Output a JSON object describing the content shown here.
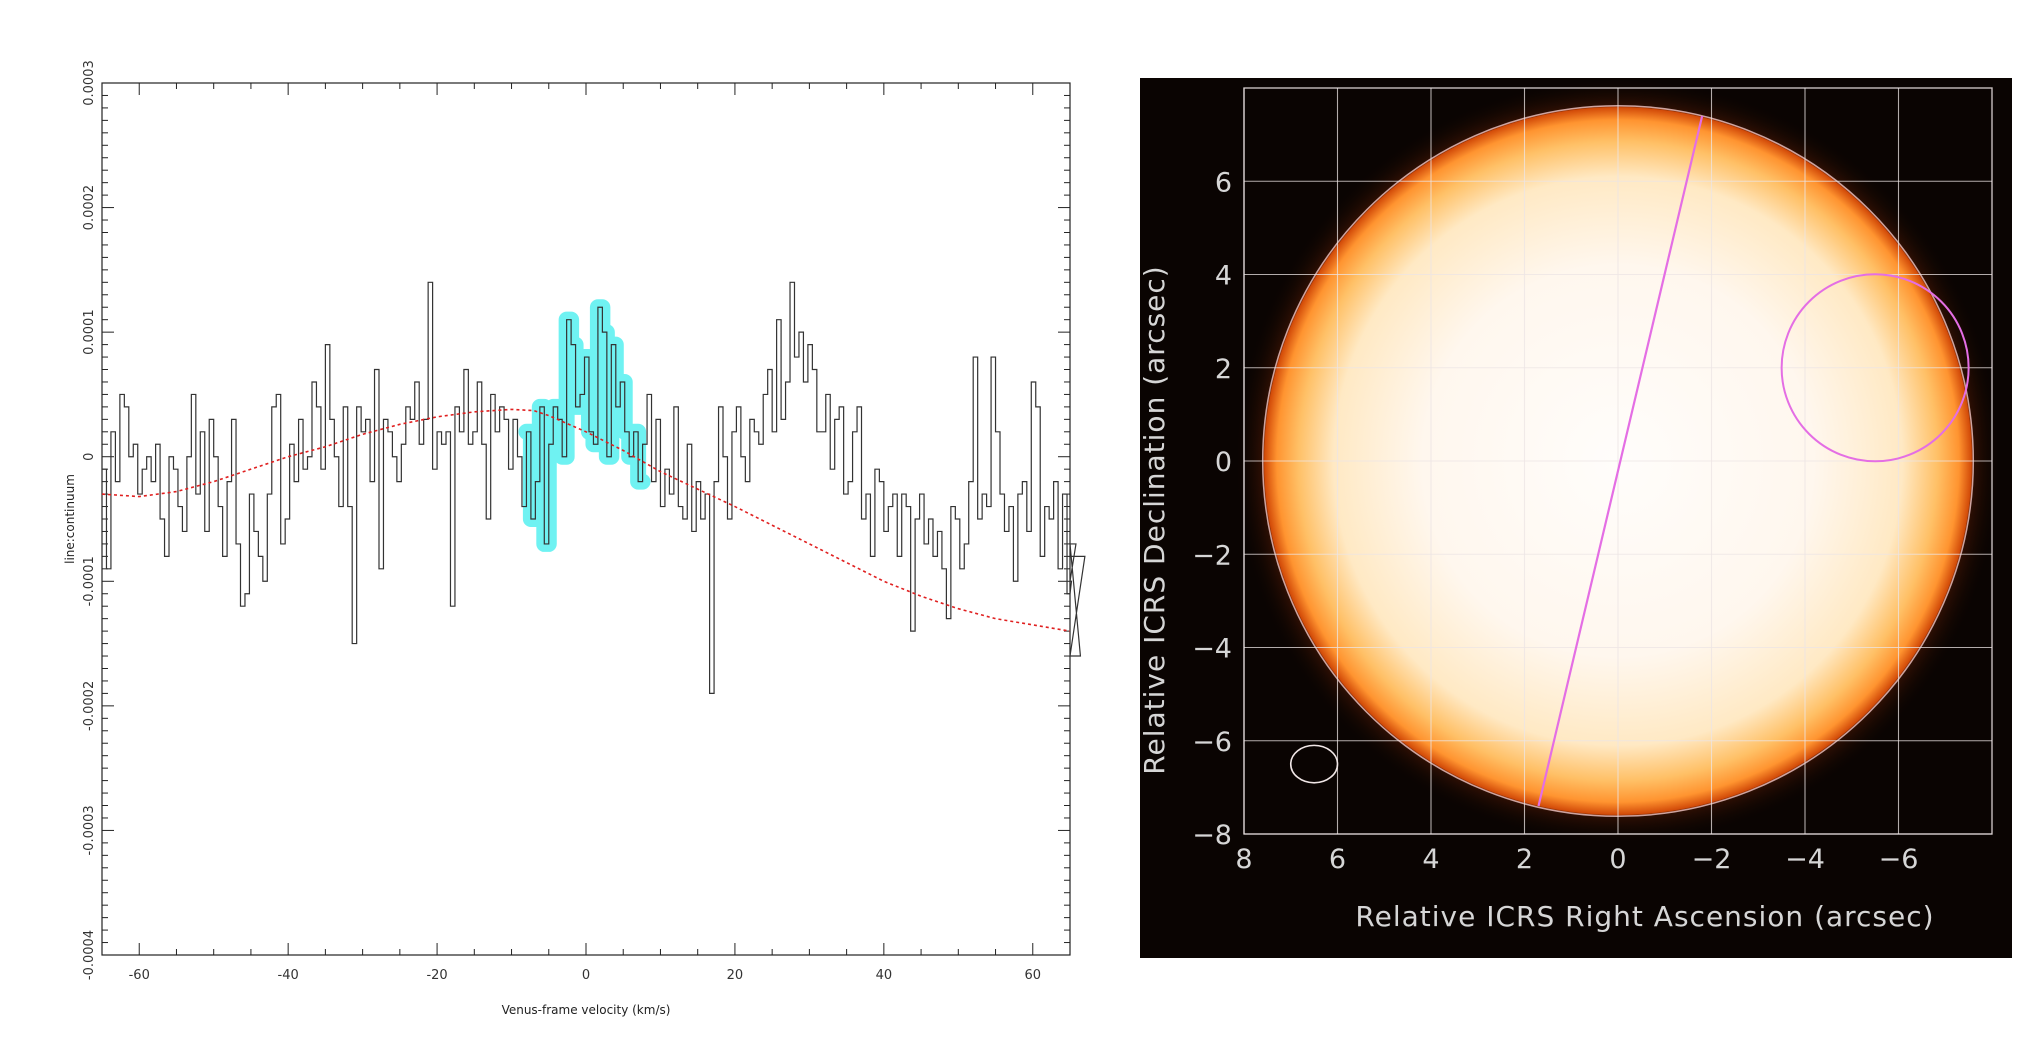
{
  "chart_data": [
    {
      "type": "line",
      "style": "step",
      "xlabel": "Venus-frame velocity (km/s)",
      "ylabel": "line:continuum",
      "xlim": [
        -65,
        65
      ],
      "ylim": [
        -0.0004,
        0.0003
      ],
      "x_ticks": [
        -60,
        -40,
        -20,
        0,
        20,
        40,
        60
      ],
      "x_tick_labels": [
        "-60",
        "-40",
        "-20",
        "0",
        "20",
        "40",
        "60"
      ],
      "y_ticks": [
        -0.0004,
        -0.0003,
        -0.0002,
        -0.0001,
        0,
        0.0001,
        0.0002,
        0.0003
      ],
      "y_tick_labels": [
        "-0.0004",
        "-0.0003",
        "-0.0002",
        "-0.0001",
        "0",
        "0.0001",
        "0.0002",
        "0.0003"
      ],
      "highlight_range": [
        -8,
        8
      ],
      "colors": {
        "data": "#333333",
        "fit": "#e02020",
        "highlight": "#6ff2f2"
      },
      "series": [
        {
          "kind": "observed",
          "x_start": -65,
          "x_step": 0.6,
          "values": [
            -1e-05,
            -9e-05,
            2e-05,
            -2e-05,
            5e-05,
            4e-05,
            0.0,
            1e-05,
            -3e-05,
            -1e-05,
            0.0,
            -2e-05,
            1e-05,
            -5e-05,
            -8e-05,
            0.0,
            -1e-05,
            -4e-05,
            -6e-05,
            0.0,
            5e-05,
            -3e-05,
            2e-05,
            -6e-05,
            3e-05,
            0.0,
            -4e-05,
            -8e-05,
            -2e-05,
            3e-05,
            -7e-05,
            -0.00012,
            -0.00011,
            -3e-05,
            -6e-05,
            -8e-05,
            -0.0001,
            -3e-05,
            4e-05,
            5e-05,
            -7e-05,
            -5e-05,
            1e-05,
            -2e-05,
            3e-05,
            -1e-05,
            0.0,
            6e-05,
            4e-05,
            -1e-05,
            9e-05,
            3e-05,
            0.0,
            -4e-05,
            4e-05,
            -4e-05,
            -0.00015,
            4e-05,
            2e-05,
            3e-05,
            -2e-05,
            7e-05,
            -9e-05,
            3e-05,
            2e-05,
            0.0,
            -2e-05,
            1e-05,
            4e-05,
            3e-05,
            6e-05,
            1e-05,
            3e-05,
            0.00014,
            -1e-05,
            2e-05,
            1e-05,
            2e-05,
            -0.00012,
            4e-05,
            2e-05,
            7e-05,
            1e-05,
            2e-05,
            6e-05,
            1e-05,
            -5e-05,
            5e-05,
            2e-05,
            4e-05,
            3e-05,
            -1e-05,
            3e-05,
            0.0,
            -4e-05,
            2e-05,
            -5e-05,
            -2e-05,
            4e-05,
            -7e-05,
            1e-05,
            4e-05,
            3e-05,
            0.0,
            0.00011,
            9e-05,
            4e-05,
            5e-05,
            8e-05,
            2e-05,
            1e-05,
            0.00012,
            0.0001,
            0.0,
            9e-05,
            4e-05,
            6e-05,
            2e-05,
            0.0,
            2e-05,
            -2e-05,
            1e-05,
            5e-05,
            -2e-05,
            3e-05,
            -4e-05,
            -1e-05,
            -3e-05,
            4e-05,
            -4e-05,
            -5e-05,
            1e-05,
            -6e-05,
            -2e-05,
            -5e-05,
            -3e-05,
            -0.00019,
            -2e-05,
            4e-05,
            0.0,
            -5e-05,
            2e-05,
            4e-05,
            0.0,
            -2e-05,
            3e-05,
            2e-05,
            1e-05,
            5e-05,
            7e-05,
            2e-05,
            0.00011,
            3e-05,
            6e-05,
            0.00014,
            8e-05,
            0.0001,
            6e-05,
            9e-05,
            7e-05,
            2e-05,
            2e-05,
            5e-05,
            -1e-05,
            3e-05,
            4e-05,
            -3e-05,
            -2e-05,
            2e-05,
            4e-05,
            -5e-05,
            -3e-05,
            -8e-05,
            -1e-05,
            -2e-05,
            -6e-05,
            -4e-05,
            -3e-05,
            -8e-05,
            -3e-05,
            -4e-05,
            -0.00014,
            -5e-05,
            -3e-05,
            -7e-05,
            -5e-05,
            -8e-05,
            -6e-05,
            -9e-05,
            -0.00013,
            -4e-05,
            -5e-05,
            -9e-05,
            -7e-05,
            -2e-05,
            8e-05,
            -5e-05,
            -3e-05,
            -4e-05,
            8e-05,
            2e-05,
            -3e-05,
            -6e-05,
            -4e-05,
            -0.0001,
            -3e-05,
            -2e-05,
            -6e-05,
            6e-05,
            4e-05,
            -8e-05,
            -4e-05,
            -5e-05,
            -2e-05,
            -9e-05,
            -3e-05,
            -0.00011,
            -0.0001,
            -7e-05,
            -0.00016,
            -8e-05
          ]
        },
        {
          "kind": "model",
          "x": [
            -65,
            -60,
            -55,
            -50,
            -45,
            -40,
            -35,
            -30,
            -25,
            -20,
            -15,
            -10,
            -7,
            -5,
            0,
            5,
            10,
            15,
            20,
            25,
            30,
            35,
            40,
            45,
            50,
            55,
            60,
            65
          ],
          "values": [
            -3e-05,
            -3.2e-05,
            -2.8e-05,
            -2e-05,
            -1e-05,
            0.0,
            8e-06,
            1.8e-05,
            2.6e-05,
            3.2e-05,
            3.6e-05,
            3.8e-05,
            3.7e-05,
            3.3e-05,
            2e-05,
            5e-06,
            -1.2e-05,
            -2.6e-05,
            -4e-05,
            -5.5e-05,
            -7e-05,
            -8.5e-05,
            -0.0001,
            -0.000112,
            -0.000122,
            -0.00013,
            -0.000135,
            -0.00014
          ]
        }
      ]
    },
    {
      "type": "heatmap",
      "xlabel": "Relative ICRS Right Ascension (arcsec)",
      "ylabel": "Relative ICRS Declination (arcsec)",
      "xlim": [
        8,
        -8
      ],
      "ylim": [
        -8,
        8
      ],
      "x_ticks": [
        8,
        6,
        4,
        2,
        0,
        -2,
        -4,
        -6
      ],
      "x_tick_labels": [
        "8",
        "6",
        "4",
        "2",
        "0",
        "−2",
        "−4",
        "−6"
      ],
      "y_ticks": [
        -8,
        -6,
        -4,
        -2,
        0,
        2,
        4,
        6
      ],
      "y_tick_labels": [
        "−8",
        "−6",
        "−4",
        "−2",
        "0",
        "2",
        "4",
        "6"
      ],
      "grid": true,
      "disk_radius": 7.6,
      "colormap": [
        "#fffdfb",
        "#ffe9c4",
        "#ffc066",
        "#ff9430",
        "#d24a08",
        "#5a1a04",
        "#0a0402"
      ],
      "overlays": {
        "line": {
          "from": [
            1.7,
            -7.4
          ],
          "to": [
            -1.8,
            7.4
          ],
          "color": "#e46ee4"
        },
        "circle": {
          "center": [
            -5.5,
            2.0
          ],
          "radius": 2.0,
          "color": "#e46ee4"
        },
        "beam": {
          "center": [
            6.5,
            -6.5
          ],
          "rx": 0.5,
          "ry": 0.4,
          "color": "#f0e6e6"
        }
      }
    }
  ]
}
